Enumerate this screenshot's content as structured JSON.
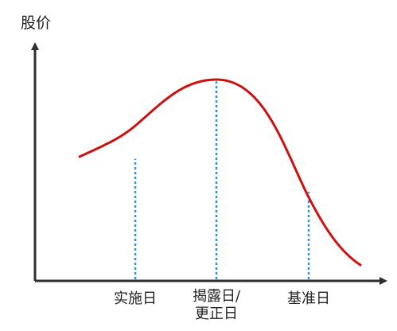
{
  "axes": {
    "y_label": "股价"
  },
  "events": [
    {
      "id": "implementation",
      "label_lines": [
        "实施日"
      ],
      "price": 0.52
    },
    {
      "id": "disclosure",
      "label_lines": [
        "揭露日/",
        "更正日"
      ],
      "price": 0.85
    },
    {
      "id": "base",
      "label_lines": [
        "基准日"
      ],
      "price": 0.38
    }
  ],
  "colors": {
    "axis": "#2f2f2f",
    "curve": "#cc1111",
    "marker": "#3a8fd6",
    "text": "#222222"
  }
}
